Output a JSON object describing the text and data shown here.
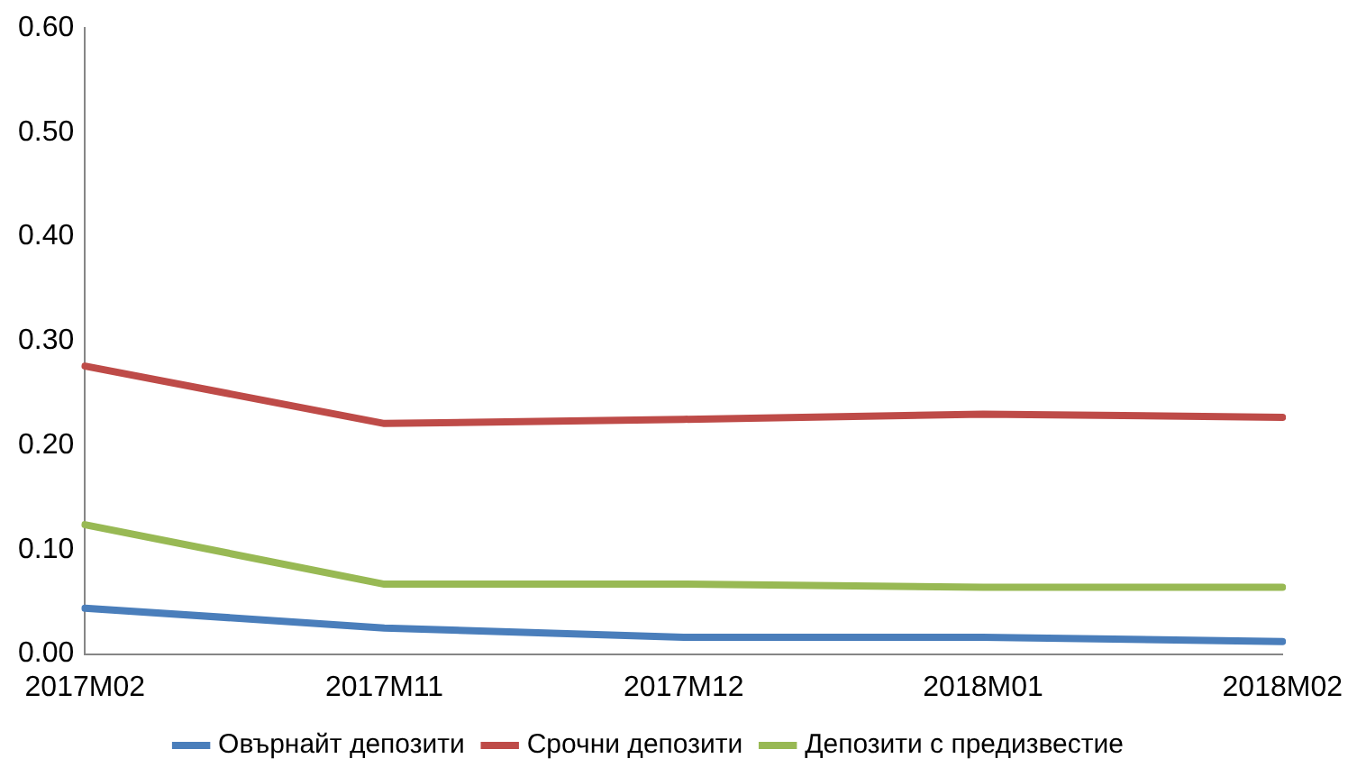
{
  "chart_data": {
    "type": "line",
    "categories": [
      "2017M02",
      "2017M11",
      "2017M12",
      "2018M01",
      "2018M02"
    ],
    "series": [
      {
        "name": "Овърнайт депозити",
        "color": "#4a7ebb",
        "values": [
          0.044,
          0.025,
          0.016,
          0.016,
          0.012
        ]
      },
      {
        "name": "Срочни депозити",
        "color": "#be4b48",
        "values": [
          0.276,
          0.221,
          0.225,
          0.23,
          0.227
        ]
      },
      {
        "name": "Депозити с предизвестие",
        "color": "#98b954",
        "values": [
          0.124,
          0.067,
          0.067,
          0.064,
          0.064
        ]
      }
    ],
    "ylim": [
      0,
      0.6
    ],
    "yticks": [
      {
        "value": 0,
        "label": "0.00"
      },
      {
        "value": 0.1,
        "label": "0.10"
      },
      {
        "value": 0.2,
        "label": "0.20"
      },
      {
        "value": 0.3,
        "label": "0.30"
      },
      {
        "value": 0.4,
        "label": "0.40"
      },
      {
        "value": 0.5,
        "label": "0.50"
      },
      {
        "value": 0.6,
        "label": "0.60"
      }
    ],
    "grid": false,
    "legend": "bottom",
    "marker": "none",
    "line_style": "solid"
  }
}
